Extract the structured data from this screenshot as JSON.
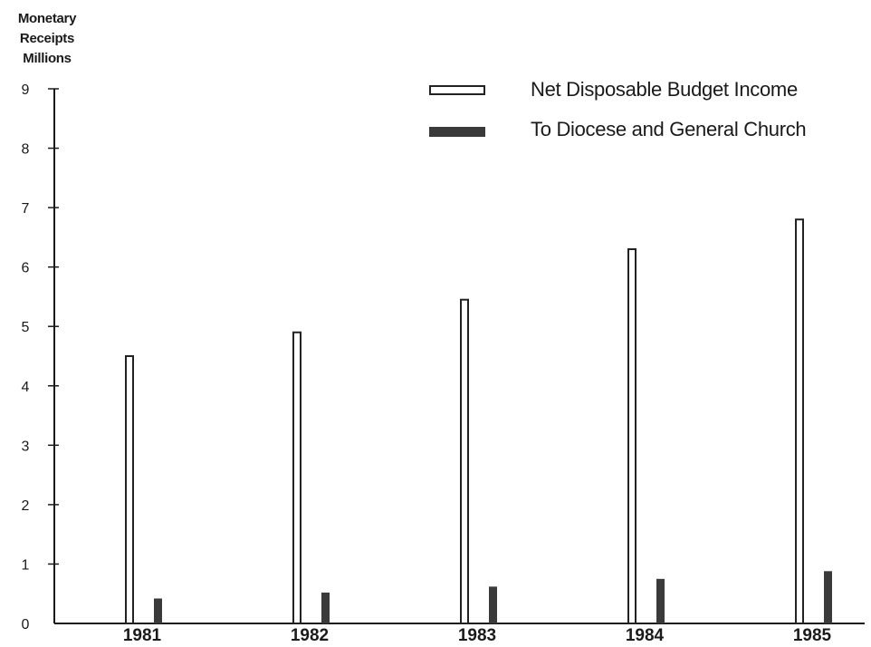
{
  "chart_data": {
    "type": "bar",
    "ylabel_lines": [
      "Monetary",
      "Receipts",
      "Millions"
    ],
    "categories": [
      "1981",
      "1982",
      "1983",
      "1984",
      "1985"
    ],
    "series": [
      {
        "name": "Net Disposable Budget Income",
        "values": [
          4.5,
          4.9,
          5.45,
          6.3,
          6.8
        ],
        "fill": "#ffffff",
        "stroke": "#222222"
      },
      {
        "name": "To Diocese and General Church",
        "values": [
          0.42,
          0.52,
          0.62,
          0.75,
          0.88
        ],
        "fill": "#3a3a3a",
        "stroke": "#3a3a3a"
      }
    ],
    "yticks": [
      "0",
      "1",
      "2",
      "3",
      "4",
      "5",
      "6",
      "7",
      "8",
      "9"
    ],
    "ylim": [
      0,
      9
    ],
    "legend_position": "top-right",
    "grid": false
  }
}
